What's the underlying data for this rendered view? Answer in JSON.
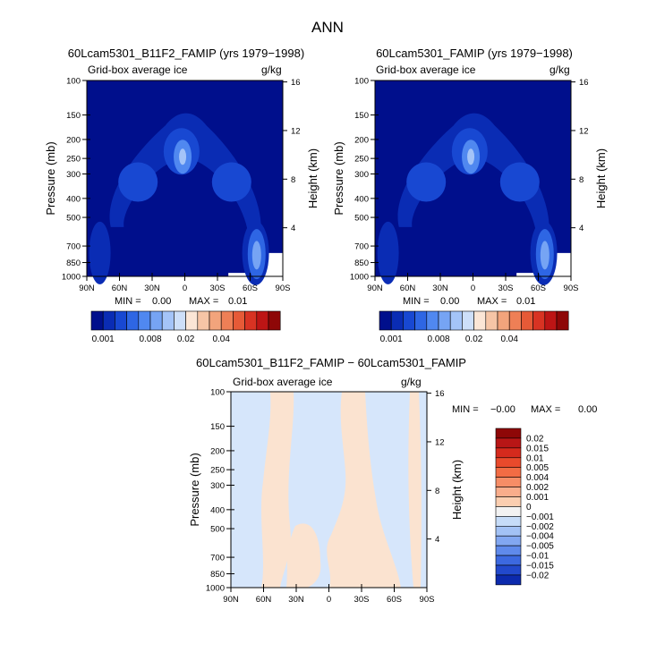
{
  "figure": {
    "title": "ANN"
  },
  "common": {
    "subtitle": "Grid-box average ice",
    "units": "g/kg",
    "ylabel_left": "Pressure (mb)",
    "ylabel_right": "Height (km)",
    "lat_ticks": [
      "90N",
      "60N",
      "30N",
      "0",
      "30S",
      "60S",
      "90S"
    ],
    "pressure_ticks": [
      "100",
      "150",
      "200",
      "250",
      "300",
      "400",
      "500",
      "700",
      "850",
      "1000"
    ],
    "height_ticks": [
      "16",
      "12",
      "8",
      "4"
    ]
  },
  "panels": [
    {
      "title": "60Lcam5301_B11F2_FAMIP (yrs 1979−1998)",
      "min": "0.00",
      "max": "0.01"
    },
    {
      "title": "60Lcam5301_FAMIP (yrs 1979−1998)",
      "min": "0.00",
      "max": "0.01"
    },
    {
      "title": "60Lcam5301_B11F2_FAMIP − 60Lcam5301_FAMIP",
      "min": "−0.00",
      "max": "0.00"
    }
  ],
  "minmax_labels": {
    "min": "MIN =",
    "max": "MAX ="
  },
  "horizontal_colorbar": {
    "labels": [
      "0.001",
      "0.008",
      "0.02",
      "0.04"
    ],
    "colors": [
      "#000f8c",
      "#0a2cb4",
      "#1848d2",
      "#2e66e4",
      "#5088f0",
      "#76a4f4",
      "#a4c4f8",
      "#cddff9",
      "#fbe6d6",
      "#f6c5a6",
      "#f2a47c",
      "#ee7f56",
      "#e65a37",
      "#d83323",
      "#bd1515",
      "#8e0707"
    ]
  },
  "vertical_colorbar": {
    "labels": [
      "0.02",
      "0.015",
      "0.01",
      "0.005",
      "0.004",
      "0.002",
      "0.001",
      "0",
      "−0.001",
      "−0.002",
      "−0.004",
      "−0.005",
      "−0.01",
      "−0.015",
      "−0.02"
    ],
    "colors": [
      "#8e0707",
      "#b81616",
      "#d52a1d",
      "#e94a2c",
      "#f26c44",
      "#f68d66",
      "#f9ad8b",
      "#fbceb0",
      "#f2f2f2",
      "#c6dcf8",
      "#a3c2f5",
      "#82a7f1",
      "#5f8aeb",
      "#3c69e0",
      "#2249cc",
      "#0c2aad"
    ]
  },
  "chart_data": [
    {
      "type": "heatmap",
      "title": "60Lcam5301_B11F2_FAMIP (yrs 1979−1998)",
      "subtitle": "Grid-box average ice",
      "units": "g/kg",
      "xlabel": "",
      "ylabel": "Pressure (mb)",
      "ylabel_right": "Height (km)",
      "x_ticks": [
        "90N",
        "60N",
        "30N",
        "0",
        "30S",
        "60S",
        "90S"
      ],
      "y_ticks": [
        100,
        150,
        200,
        250,
        300,
        400,
        500,
        700,
        850,
        1000
      ],
      "min": 0.0,
      "max": 0.01,
      "features": [
        {
          "lat": 5,
          "p": 250,
          "value": 0.008
        },
        {
          "lat": 45,
          "p": 350,
          "value": 0.004
        },
        {
          "lat": -45,
          "p": 350,
          "value": 0.004
        },
        {
          "lat": -65,
          "p": 750,
          "value": 0.008
        },
        {
          "lat": 80,
          "p": 800,
          "value": 0.002
        }
      ]
    },
    {
      "type": "heatmap",
      "title": "60Lcam5301_FAMIP (yrs 1979−1998)",
      "subtitle": "Grid-box average ice",
      "units": "g/kg",
      "xlabel": "",
      "ylabel": "Pressure (mb)",
      "ylabel_right": "Height (km)",
      "x_ticks": [
        "90N",
        "60N",
        "30N",
        "0",
        "30S",
        "60S",
        "90S"
      ],
      "y_ticks": [
        100,
        150,
        200,
        250,
        300,
        400,
        500,
        700,
        850,
        1000
      ],
      "min": 0.0,
      "max": 0.01,
      "features": [
        {
          "lat": 5,
          "p": 250,
          "value": 0.008
        },
        {
          "lat": 45,
          "p": 350,
          "value": 0.004
        },
        {
          "lat": -45,
          "p": 350,
          "value": 0.004
        },
        {
          "lat": -65,
          "p": 750,
          "value": 0.008
        },
        {
          "lat": 80,
          "p": 800,
          "value": 0.002
        }
      ]
    },
    {
      "type": "heatmap",
      "title": "60Lcam5301_B11F2_FAMIP − 60Lcam5301_FAMIP",
      "subtitle": "Grid-box average ice",
      "units": "g/kg",
      "xlabel": "",
      "ylabel": "Pressure (mb)",
      "ylabel_right": "Height (km)",
      "x_ticks": [
        "90N",
        "60N",
        "30N",
        "0",
        "30S",
        "60S",
        "90S"
      ],
      "y_ticks": [
        100,
        150,
        200,
        250,
        300,
        400,
        500,
        700,
        850,
        1000
      ],
      "min": -0.0,
      "max": 0.0,
      "levels": [
        -0.02,
        -0.015,
        -0.01,
        -0.005,
        -0.004,
        -0.002,
        -0.001,
        0,
        0.001,
        0.002,
        0.004,
        0.005,
        0.01,
        0.015,
        0.02
      ]
    }
  ]
}
